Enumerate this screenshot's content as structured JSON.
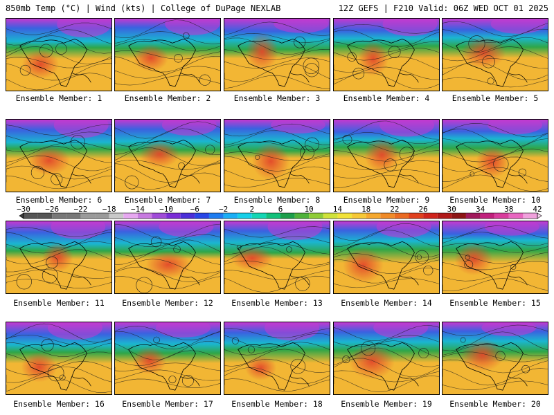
{
  "header": {
    "left": "850mb Temp (°C) | Wind (kts) | College of DuPage NEXLAB",
    "right": "12Z GEFS | F210 Valid: 06Z WED OCT 01 2025"
  },
  "colorbar": {
    "label_values": [
      "-30",
      "-26",
      "-22",
      "-18",
      "-14",
      "-10",
      "-6",
      "-2",
      "2",
      "6",
      "10",
      "14",
      "18",
      "22",
      "26",
      "30",
      "34",
      "38",
      "42"
    ],
    "color_stops": [
      {
        "t": -32,
        "color": "#3a3a3a"
      },
      {
        "t": -30,
        "color": "#555555"
      },
      {
        "t": -26,
        "color": "#777777"
      },
      {
        "t": -22,
        "color": "#9a9a9a"
      },
      {
        "t": -18,
        "color": "#c8c8c8"
      },
      {
        "t": -16,
        "color": "#e6a8f0"
      },
      {
        "t": -14,
        "color": "#c77ae0"
      },
      {
        "t": -12,
        "color": "#a04bd8"
      },
      {
        "t": -10,
        "color": "#7a2cd6"
      },
      {
        "t": -8,
        "color": "#4b2fd8"
      },
      {
        "t": -6,
        "color": "#2846e6"
      },
      {
        "t": -4,
        "color": "#1e7cf0"
      },
      {
        "t": -2,
        "color": "#1aaef5"
      },
      {
        "t": 0,
        "color": "#16cfe8"
      },
      {
        "t": 2,
        "color": "#14d6b4"
      },
      {
        "t": 4,
        "color": "#12c07a"
      },
      {
        "t": 6,
        "color": "#1c9e4a"
      },
      {
        "t": 8,
        "color": "#4fb23a"
      },
      {
        "t": 10,
        "color": "#8fcc38"
      },
      {
        "t": 12,
        "color": "#cfe23a"
      },
      {
        "t": 14,
        "color": "#f2e23a"
      },
      {
        "t": 16,
        "color": "#f6c836"
      },
      {
        "t": 18,
        "color": "#f5a82e"
      },
      {
        "t": 20,
        "color": "#f08a28"
      },
      {
        "t": 22,
        "color": "#ea6a22"
      },
      {
        "t": 24,
        "color": "#e0401e"
      },
      {
        "t": 26,
        "color": "#d0241c"
      },
      {
        "t": 28,
        "color": "#b01818"
      },
      {
        "t": 30,
        "color": "#8c1414"
      },
      {
        "t": 32,
        "color": "#a0185a"
      },
      {
        "t": 34,
        "color": "#c0207c"
      },
      {
        "t": 36,
        "color": "#d83c9c"
      },
      {
        "t": 38,
        "color": "#e866c0"
      },
      {
        "t": 40,
        "color": "#f0a0dc"
      },
      {
        "t": 42,
        "color": "#f6d0ee"
      },
      {
        "t": 44,
        "color": "#ffffff"
      }
    ]
  },
  "panel_colors": {
    "polar": "#c23ad0",
    "cold": "#3a62e0",
    "cool": "#1ab6d0",
    "mild": "#2fa648",
    "warm": "#f2b634",
    "hot": "#e2482a",
    "contour": "#1a1a1a",
    "coast": "#000000"
  },
  "members": [
    {
      "caption": "Ensemble Member: 1"
    },
    {
      "caption": "Ensemble Member: 2"
    },
    {
      "caption": "Ensemble Member: 3"
    },
    {
      "caption": "Ensemble Member: 4"
    },
    {
      "caption": "Ensemble Member: 5"
    },
    {
      "caption": "Ensemble Member: 6"
    },
    {
      "caption": "Ensemble Member: 7"
    },
    {
      "caption": "Ensemble Member: 8"
    },
    {
      "caption": "Ensemble Member: 9"
    },
    {
      "caption": "Ensemble Member: 10"
    },
    {
      "caption": "Ensemble Member: 11"
    },
    {
      "caption": "Ensemble Member: 12"
    },
    {
      "caption": "Ensemble Member: 13"
    },
    {
      "caption": "Ensemble Member: 14"
    },
    {
      "caption": "Ensemble Member: 15"
    },
    {
      "caption": "Ensemble Member: 16"
    },
    {
      "caption": "Ensemble Member: 17"
    },
    {
      "caption": "Ensemble Member: 18"
    },
    {
      "caption": "Ensemble Member: 19"
    },
    {
      "caption": "Ensemble Member: 20"
    }
  ]
}
